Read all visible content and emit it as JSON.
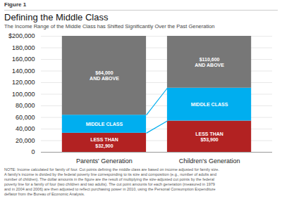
{
  "chart_data": {
    "type": "bar",
    "stacked": true,
    "figure_label": "Figure 1",
    "title": "Defining the Middle Class",
    "subtitle": "The Income Range of the Middle Class has Shifted Significantly Over the Past Generation",
    "categories": [
      "Parents' Generation",
      "Children's Generation"
    ],
    "series": [
      {
        "color": "#b22222",
        "values": [
          32900,
          53900
        ],
        "labels": [
          "LESS THAN\n$32,900",
          "LESS THAN\n$53,900"
        ]
      },
      {
        "color": "#00aeef",
        "values": [
          31100,
          56700
        ],
        "labels": [
          "MIDDLE CLASS",
          "MIDDLE CLASS"
        ]
      },
      {
        "color": "#777777",
        "values": [
          136000,
          89400
        ],
        "labels": [
          "$64,000\nAND ABOVE",
          "$110,600\nAND ABOVE"
        ]
      }
    ],
    "ylim": [
      0,
      200000
    ],
    "yticks": [
      0,
      {
        "value": 20000,
        "label": "20,000"
      },
      {
        "value": 40000,
        "label": "40,000"
      },
      {
        "value": 60000,
        "label": "60,000"
      },
      {
        "value": 80000,
        "label": "80,000"
      },
      {
        "value": 100000,
        "label": "100,000"
      },
      {
        "value": 120000,
        "label": "120,000"
      },
      {
        "value": 140000,
        "label": "140,000"
      },
      {
        "value": 160000,
        "label": "160,000"
      },
      {
        "value": 180000,
        "label": "180,000"
      },
      {
        "value": 200000,
        "label": "$200,000"
      }
    ],
    "grid": true,
    "note": "NOTE: Income calculated for family of four. Cut points defining the middle class are based on income adjusted for family size.\nA family's income is divided by the federal poverty line corresponding to its size and composition (e.g., number of adults and\nnumber of children). The dollar amounts in the figure are the result of multiplying the size-adjusted cut points by the federal\npoverty line for a family of four (two children and two adults). The cut point amounts for each generation (measured in 1979\nand in 2004 and 2006) are then adjusted to reflect purchasing power in 2010, using the Personal Consumption Expenditure\ndeflator from the Bureau of Economic Analysis."
  }
}
